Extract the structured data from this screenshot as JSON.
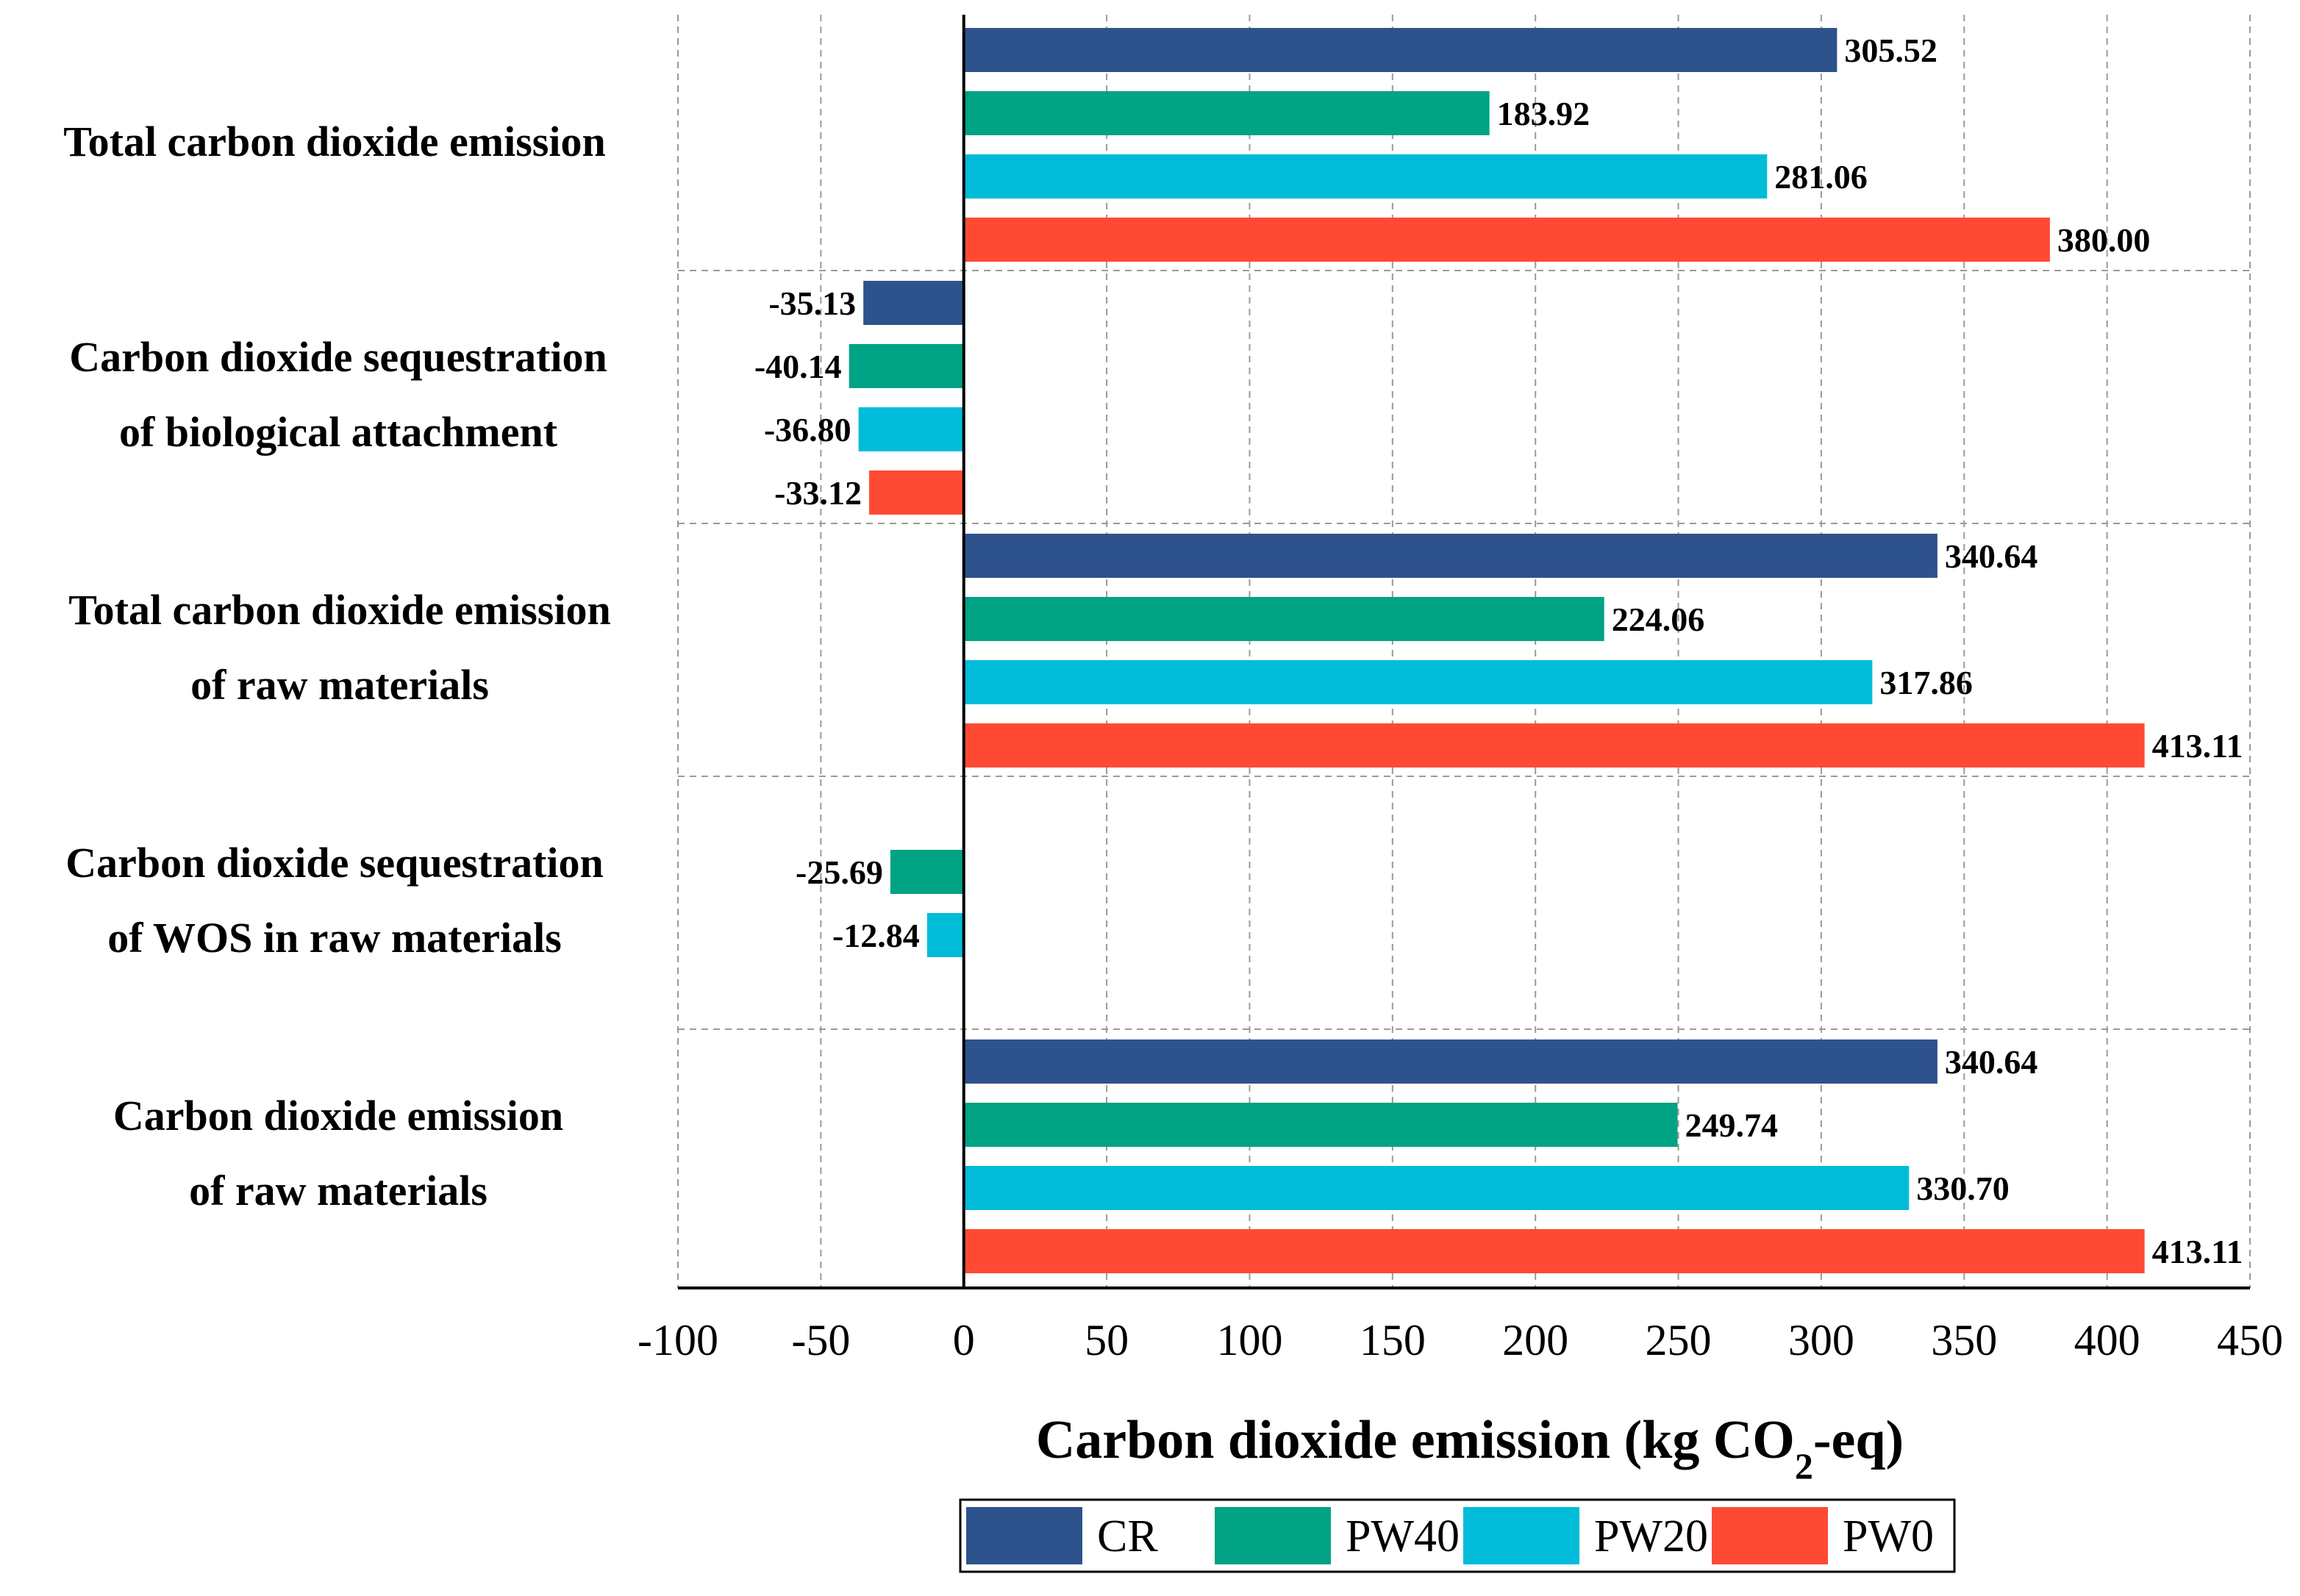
{
  "chart_data": {
    "type": "bar",
    "orientation": "horizontal",
    "categories": [
      [
        "Total carbon dioxide emission"
      ],
      [
        "Carbon dioxide sequestration",
        "of biological attachment"
      ],
      [
        "Total carbon dioxide emission",
        "of raw materials"
      ],
      [
        "Carbon dioxide sequestration",
        "of WOS in raw materials"
      ],
      [
        "Carbon dioxide emission",
        "of raw materials"
      ]
    ],
    "series": [
      {
        "name": "CR",
        "color": "#2E528C",
        "values": [
          305.52,
          -35.13,
          340.64,
          null,
          340.64
        ],
        "labels": [
          "305.52",
          "-35.13",
          "340.64",
          null,
          "340.64"
        ]
      },
      {
        "name": "PW40",
        "color": "#00A384",
        "values": [
          183.92,
          -40.14,
          224.06,
          -25.69,
          249.74
        ],
        "labels": [
          "183.92",
          "-40.14",
          "224.06",
          "-25.69",
          "249.74"
        ]
      },
      {
        "name": "PW20",
        "color": "#00BCD9",
        "values": [
          281.06,
          -36.8,
          317.86,
          -12.84,
          330.7
        ],
        "labels": [
          "281.06",
          "-36.80",
          "317.86",
          "-12.84",
          "330.70"
        ]
      },
      {
        "name": "PW0",
        "color": "#FF4A33",
        "values": [
          380.0,
          -33.12,
          413.11,
          null,
          413.11
        ],
        "labels": [
          "380.00",
          "-33.12",
          "413.11",
          null,
          "413.11"
        ]
      }
    ],
    "xlim": [
      -100,
      450
    ],
    "xticks": [
      -100,
      -50,
      0,
      50,
      100,
      150,
      200,
      250,
      300,
      350,
      400,
      450
    ],
    "xtick_labels": [
      "-100",
      "-50",
      "0",
      "50",
      "100",
      "150",
      "200",
      "250",
      "300",
      "350",
      "400",
      "450"
    ],
    "xlabel_parts": {
      "main": "Carbon dioxide emission (kg CO",
      "sub": "2",
      "tail": "-eq)"
    },
    "grid": "vertical-dashed",
    "legend_position": "bottom-center"
  }
}
